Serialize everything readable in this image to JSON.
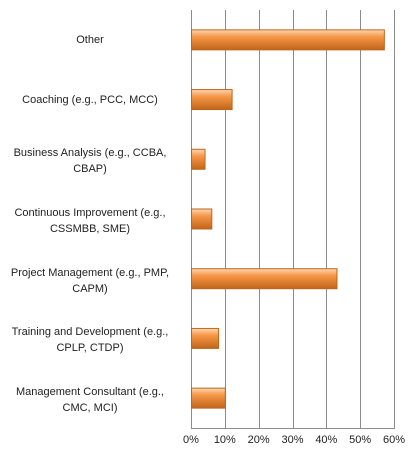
{
  "chart_data": {
    "type": "bar",
    "orientation": "horizontal",
    "categories": [
      "Other",
      "Coaching (e.g., PCC, MCC)",
      "Business Analysis (e.g., CCBA, CBAP)",
      "Continuous Improvement (e.g., CSSMBB, SME)",
      "Project Management (e.g., PMP, CAPM)",
      "Training and Development (e.g., CPLP, CTDP)",
      "Management Consultant (e.g., CMC, MCI)"
    ],
    "category_lines": [
      [
        "Other"
      ],
      [
        "Coaching (e.g., PCC, MCC)"
      ],
      [
        "Business Analysis (e.g., CCBA,",
        "CBAP)"
      ],
      [
        "Continuous Improvement (e.g.,",
        "CSSMBB, SME)"
      ],
      [
        "Project Management (e.g., PMP,",
        "CAPM)"
      ],
      [
        "Training and Development (e.g.,",
        "CPLP, CTDP)"
      ],
      [
        "Management Consultant (e.g.,",
        "CMC, MCI)"
      ]
    ],
    "values": [
      57,
      12,
      4,
      6,
      43,
      8,
      10
    ],
    "xlim": [
      0,
      60
    ],
    "xticks": [
      "0%",
      "10%",
      "20%",
      "30%",
      "40%",
      "50%",
      "60%"
    ],
    "grid": true,
    "bar_color": "#f79646",
    "bar_highlight": "#fbd7b4",
    "bar_border": "#c0651a"
  }
}
